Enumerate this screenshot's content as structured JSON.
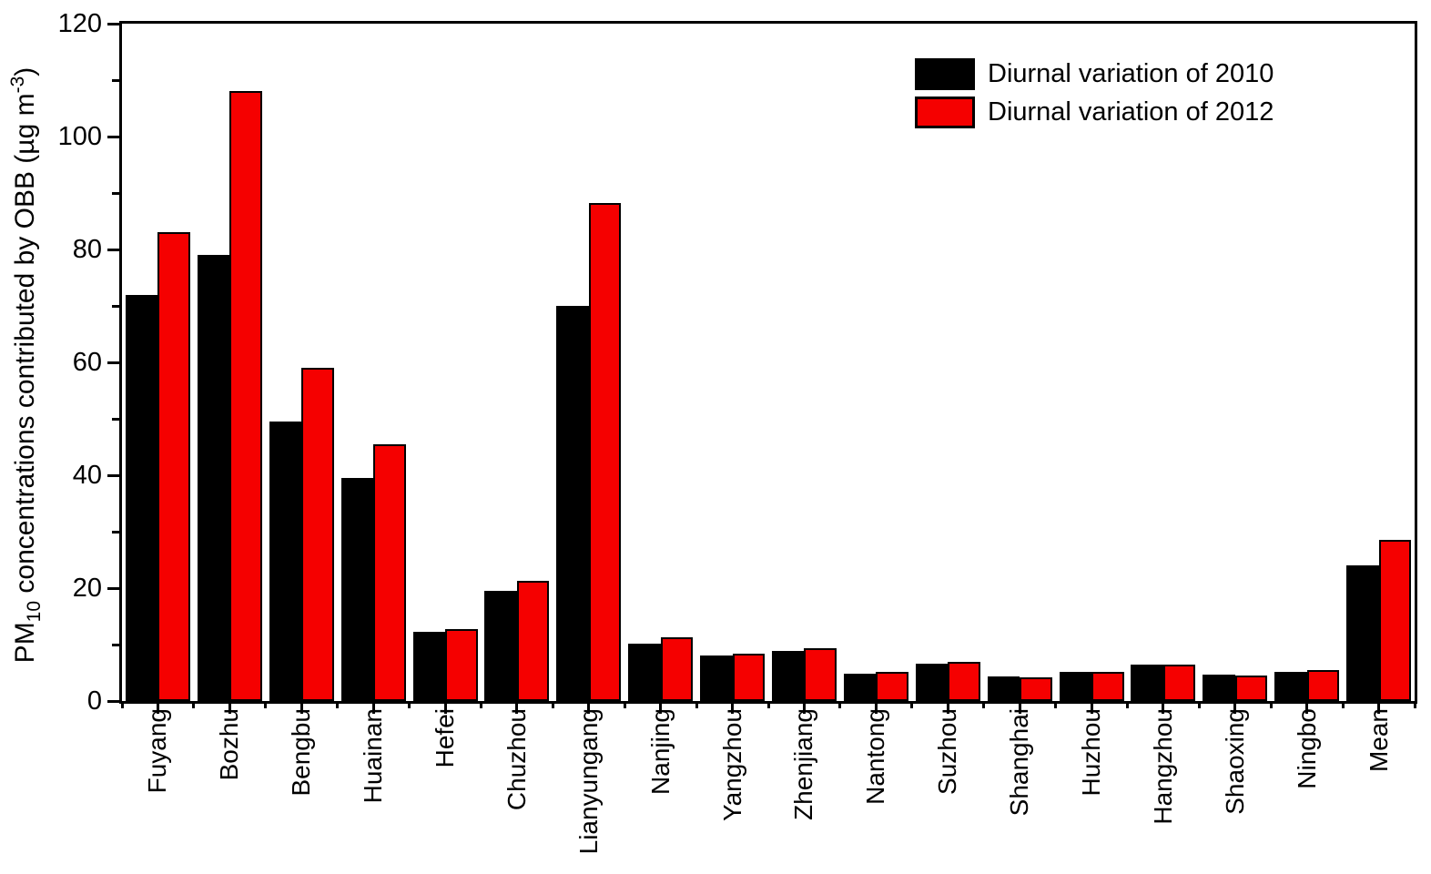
{
  "chart_data": {
    "type": "bar",
    "title": "",
    "ylabel_parts": {
      "prefix": "PM",
      "sub": "10",
      "mid": " concentrations contributed by OBB (µg m",
      "sup": "-3",
      "suffix": ")"
    },
    "ylim": [
      0,
      120
    ],
    "y_major_ticks": [
      0,
      20,
      40,
      60,
      80,
      100,
      120
    ],
    "y_minor_step": 10,
    "grid": false,
    "legend_position": "top-right-inside",
    "categories": [
      "Fuyang",
      "Bozhu",
      "Bengbu",
      "Huainan",
      "Hefei",
      "Chuzhou",
      "Lianyungang",
      "Nanjing",
      "Yangzhou",
      "Zhenjiang",
      "Nantong",
      "Suzhou",
      "Shanghai",
      "Huzhou",
      "Hangzhou",
      "Shaoxing",
      "Ningbo",
      "Mean"
    ],
    "series": [
      {
        "name": "Diurnal variation of 2010",
        "year": "2010",
        "color": "#000000",
        "values": [
          72,
          79,
          49.5,
          39.5,
          12.2,
          19.5,
          70,
          10.2,
          8.0,
          8.8,
          4.8,
          6.6,
          4.3,
          5.2,
          6.4,
          4.6,
          5.2,
          24
        ]
      },
      {
        "name": "Diurnal variation of 2012",
        "year": "2012",
        "color": "#f50000",
        "values": [
          83,
          108,
          59,
          45.5,
          12.7,
          21.3,
          88.3,
          11.3,
          8.4,
          9.3,
          5.1,
          6.9,
          4.2,
          5.2,
          6.4,
          4.5,
          5.5,
          28.6
        ]
      }
    ]
  },
  "colors": {
    "background": "#ffffff",
    "axis": "#000000",
    "bar_2010": "#000000",
    "bar_2012": "#f50000"
  }
}
